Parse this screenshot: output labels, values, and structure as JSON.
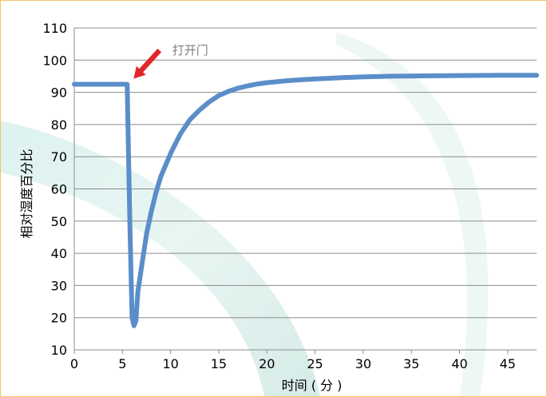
{
  "chart_data": {
    "type": "line",
    "title": "",
    "xlabel": "时间 ( 分 )",
    "ylabel": "相对湿度百分比",
    "xlim": [
      0,
      48
    ],
    "ylim": [
      10,
      110
    ],
    "xticks": [
      0,
      5,
      10,
      15,
      20,
      25,
      30,
      35,
      40,
      45
    ],
    "yticks": [
      10,
      20,
      30,
      40,
      50,
      60,
      70,
      80,
      90,
      100,
      110
    ],
    "grid": "horizontal",
    "legend": "none",
    "series_color": "#5b8ec9",
    "annotation": {
      "text": "打开门",
      "x": 5.5,
      "y": 93,
      "arrow_color": "#e3262b"
    },
    "series": [
      {
        "x": [
          0,
          1,
          2,
          3,
          4,
          5,
          5.5,
          5.6,
          5.8,
          6.0,
          6.2,
          6.4,
          6.6,
          7.0,
          7.5,
          8,
          8.5,
          9,
          10,
          11,
          12,
          13,
          14,
          15,
          16,
          17,
          18,
          19,
          20,
          22,
          24,
          26,
          28,
          30,
          33,
          36,
          40,
          44,
          48
        ],
        "y": [
          92.5,
          92.5,
          92.5,
          92.5,
          92.5,
          92.5,
          92.5,
          75,
          45,
          20,
          17.5,
          19,
          28,
          36,
          46,
          53,
          59,
          64,
          71,
          77,
          81.5,
          84.5,
          87,
          89,
          90.3,
          91.3,
          92,
          92.6,
          93,
          93.6,
          94,
          94.3,
          94.6,
          94.8,
          95,
          95.1,
          95.2,
          95.3,
          95.3
        ]
      }
    ]
  }
}
